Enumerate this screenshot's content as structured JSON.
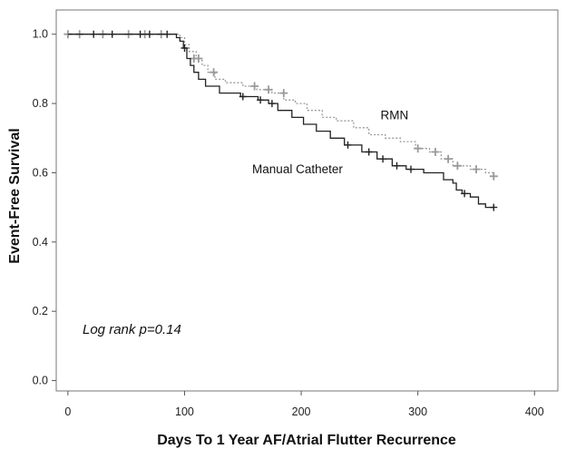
{
  "chart_data": {
    "type": "line",
    "subtype": "kaplan-meier step",
    "xlabel": "Days To 1 Year AF/Atrial Flutter Recurrence",
    "ylabel": "Event-Free Survival",
    "xlim": [
      -10,
      420
    ],
    "ylim": [
      -0.03,
      1.07
    ],
    "xticks": [
      0,
      100,
      200,
      300,
      400
    ],
    "xtick_labels": [
      "0",
      "100",
      "200",
      "300",
      "400"
    ],
    "yticks": [
      0.0,
      0.2,
      0.4,
      0.6,
      0.8,
      1.0
    ],
    "ytick_labels": [
      "0.0",
      "0.2",
      "0.4",
      "0.6",
      "0.8",
      "1.0"
    ],
    "grid": false,
    "annotation": "Log rank p=0.14",
    "colors": {
      "manual": "#222222",
      "rmn": "#9a9a9a",
      "axis": "#555555"
    },
    "series": [
      {
        "name": "Manual Catheter",
        "style": "solid",
        "steps": [
          [
            0,
            1.0
          ],
          [
            93,
            0.99
          ],
          [
            96,
            0.98
          ],
          [
            99,
            0.96
          ],
          [
            102,
            0.93
          ],
          [
            105,
            0.91
          ],
          [
            108,
            0.89
          ],
          [
            112,
            0.87
          ],
          [
            118,
            0.85
          ],
          [
            130,
            0.83
          ],
          [
            148,
            0.82
          ],
          [
            163,
            0.81
          ],
          [
            172,
            0.8
          ],
          [
            180,
            0.78
          ],
          [
            192,
            0.76
          ],
          [
            202,
            0.74
          ],
          [
            213,
            0.72
          ],
          [
            225,
            0.7
          ],
          [
            237,
            0.68
          ],
          [
            252,
            0.66
          ],
          [
            265,
            0.64
          ],
          [
            278,
            0.62
          ],
          [
            290,
            0.61
          ],
          [
            305,
            0.6
          ],
          [
            322,
            0.58
          ],
          [
            330,
            0.57
          ],
          [
            333,
            0.55
          ],
          [
            338,
            0.54
          ],
          [
            345,
            0.53
          ],
          [
            352,
            0.51
          ],
          [
            358,
            0.5
          ],
          [
            365,
            0.5
          ]
        ],
        "censored": [
          [
            22,
            1.0
          ],
          [
            38,
            1.0
          ],
          [
            62,
            1.0
          ],
          [
            70,
            1.0
          ],
          [
            85,
            1.0
          ],
          [
            100,
            0.96
          ],
          [
            150,
            0.82
          ],
          [
            165,
            0.81
          ],
          [
            175,
            0.8
          ],
          [
            240,
            0.68
          ],
          [
            258,
            0.66
          ],
          [
            270,
            0.64
          ],
          [
            282,
            0.62
          ],
          [
            294,
            0.61
          ],
          [
            340,
            0.54
          ],
          [
            365,
            0.5
          ]
        ]
      },
      {
        "name": "RMN",
        "style": "dotted",
        "steps": [
          [
            0,
            1.0
          ],
          [
            96,
            0.99
          ],
          [
            100,
            0.97
          ],
          [
            104,
            0.95
          ],
          [
            110,
            0.93
          ],
          [
            115,
            0.91
          ],
          [
            120,
            0.89
          ],
          [
            126,
            0.87
          ],
          [
            135,
            0.86
          ],
          [
            150,
            0.85
          ],
          [
            162,
            0.84
          ],
          [
            175,
            0.83
          ],
          [
            185,
            0.81
          ],
          [
            195,
            0.8
          ],
          [
            205,
            0.78
          ],
          [
            218,
            0.76
          ],
          [
            230,
            0.75
          ],
          [
            245,
            0.73
          ],
          [
            258,
            0.71
          ],
          [
            272,
            0.7
          ],
          [
            285,
            0.69
          ],
          [
            298,
            0.67
          ],
          [
            310,
            0.66
          ],
          [
            320,
            0.64
          ],
          [
            330,
            0.62
          ],
          [
            345,
            0.61
          ],
          [
            358,
            0.6
          ],
          [
            365,
            0.59
          ]
        ],
        "censored": [
          [
            0,
            1.0
          ],
          [
            10,
            1.0
          ],
          [
            30,
            1.0
          ],
          [
            52,
            1.0
          ],
          [
            66,
            1.0
          ],
          [
            80,
            1.0
          ],
          [
            108,
            0.93
          ],
          [
            112,
            0.93
          ],
          [
            125,
            0.89
          ],
          [
            160,
            0.85
          ],
          [
            172,
            0.84
          ],
          [
            185,
            0.83
          ],
          [
            300,
            0.67
          ],
          [
            315,
            0.66
          ],
          [
            326,
            0.64
          ],
          [
            334,
            0.62
          ],
          [
            350,
            0.61
          ],
          [
            365,
            0.59
          ]
        ]
      }
    ],
    "series_labels": [
      {
        "text": "RMN",
        "x": 268,
        "y": 0.755
      },
      {
        "text": "Manual Catheter",
        "x": 158,
        "y": 0.598
      }
    ]
  }
}
